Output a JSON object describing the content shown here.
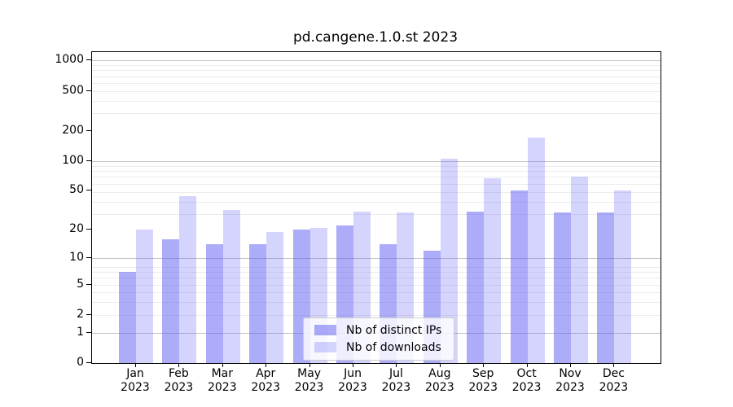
{
  "title": "pd.cangene.1.0.st 2023",
  "chart_data": {
    "type": "bar",
    "title": "pd.cangene.1.0.st 2023",
    "categories": [
      "Jan",
      "Feb",
      "Mar",
      "Apr",
      "May",
      "Jun",
      "Jul",
      "Aug",
      "Sep",
      "Oct",
      "Nov",
      "Dec"
    ],
    "year": "2023",
    "series": [
      {
        "name": "Nb of distinct IPs",
        "color": "#a9a9f8",
        "fill": "rgba(95,95,243,0.52)",
        "values": [
          7,
          16,
          14,
          14,
          20,
          22,
          14,
          12,
          31,
          50,
          30,
          30
        ]
      },
      {
        "name": "Nb of downloads",
        "color": "#d9d9fb",
        "fill": "rgba(95,95,243,0.27)",
        "values": [
          20,
          44,
          32,
          19,
          21,
          31,
          30,
          105,
          67,
          170,
          70,
          50
        ]
      }
    ],
    "yticks": [
      0,
      1,
      2,
      5,
      10,
      20,
      50,
      100,
      200,
      500,
      1000
    ],
    "y_scale": "log10(value+1)",
    "ylim": [
      0,
      1210
    ],
    "xlabel": "",
    "ylabel": "",
    "grid": true,
    "legend_position": "lower center"
  }
}
